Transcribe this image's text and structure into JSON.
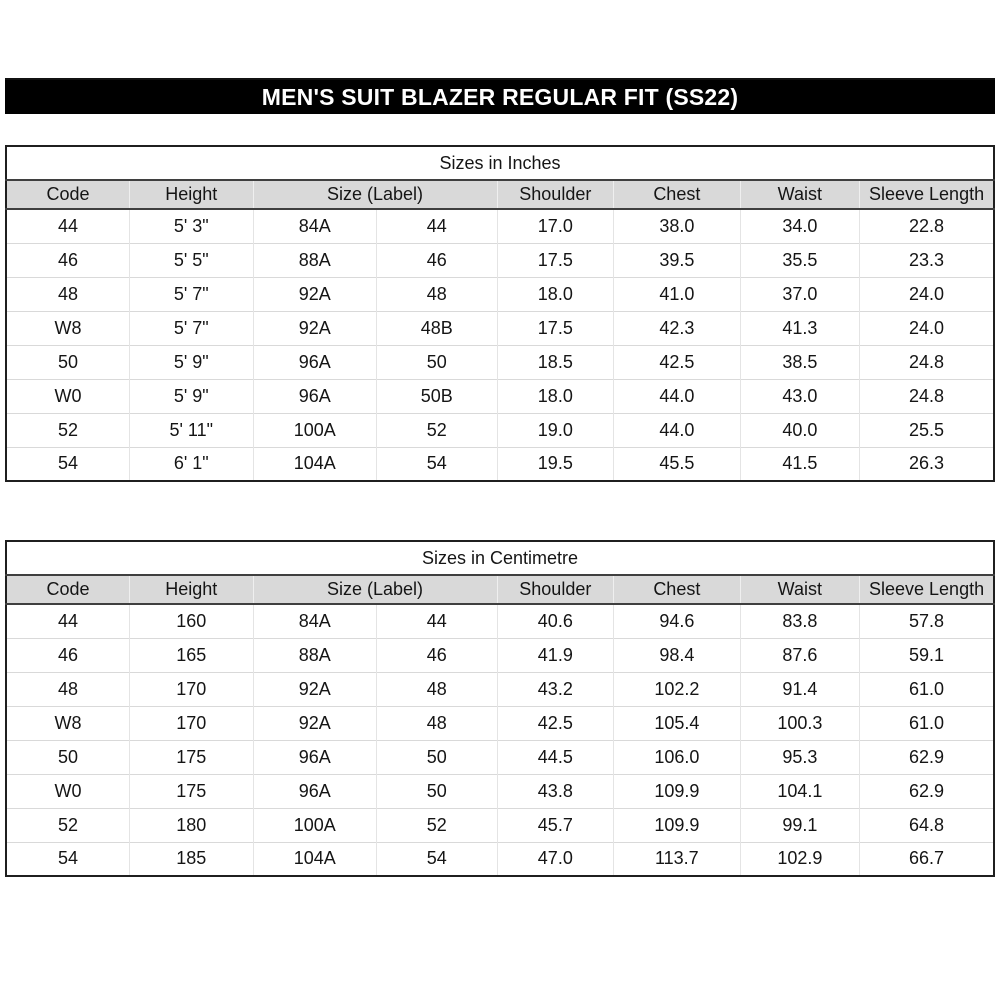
{
  "header": {
    "title": "MEN'S SUIT BLAZER REGULAR FIT (SS22)",
    "bar_color": "#000000",
    "text_color": "#ffffff"
  },
  "columns": {
    "labels": [
      "Code",
      "Height",
      "Size (Label)",
      "Shoulder",
      "Chest",
      "Waist",
      "Sleeve Length"
    ],
    "spans": [
      1,
      1,
      2,
      1,
      1,
      1,
      1
    ]
  },
  "tables": [
    {
      "caption": "Sizes in Inches",
      "rows": [
        [
          "44",
          "5' 3\"",
          "84A",
          "44",
          "17.0",
          "38.0",
          "34.0",
          "22.8"
        ],
        [
          "46",
          "5' 5\"",
          "88A",
          "46",
          "17.5",
          "39.5",
          "35.5",
          "23.3"
        ],
        [
          "48",
          "5' 7\"",
          "92A",
          "48",
          "18.0",
          "41.0",
          "37.0",
          "24.0"
        ],
        [
          "W8",
          "5' 7\"",
          "92A",
          "48B",
          "17.5",
          "42.3",
          "41.3",
          "24.0"
        ],
        [
          "50",
          "5' 9\"",
          "96A",
          "50",
          "18.5",
          "42.5",
          "38.5",
          "24.8"
        ],
        [
          "W0",
          "5' 9\"",
          "96A",
          "50B",
          "18.0",
          "44.0",
          "43.0",
          "24.8"
        ],
        [
          "52",
          "5' 11\"",
          "100A",
          "52",
          "19.0",
          "44.0",
          "40.0",
          "25.5"
        ],
        [
          "54",
          "6' 1\"",
          "104A",
          "54",
          "19.5",
          "45.5",
          "41.5",
          "26.3"
        ]
      ]
    },
    {
      "caption": "Sizes in Centimetre",
      "rows": [
        [
          "44",
          "160",
          "84A",
          "44",
          "40.6",
          "94.6",
          "83.8",
          "57.8"
        ],
        [
          "46",
          "165",
          "88A",
          "46",
          "41.9",
          "98.4",
          "87.6",
          "59.1"
        ],
        [
          "48",
          "170",
          "92A",
          "48",
          "43.2",
          "102.2",
          "91.4",
          "61.0"
        ],
        [
          "W8",
          "170",
          "92A",
          "48",
          "42.5",
          "105.4",
          "100.3",
          "61.0"
        ],
        [
          "50",
          "175",
          "96A",
          "50",
          "44.5",
          "106.0",
          "95.3",
          "62.9"
        ],
        [
          "W0",
          "175",
          "96A",
          "50",
          "43.8",
          "109.9",
          "104.1",
          "62.9"
        ],
        [
          "52",
          "180",
          "100A",
          "52",
          "45.7",
          "109.9",
          "99.1",
          "64.8"
        ],
        [
          "54",
          "185",
          "104A",
          "54",
          "47.0",
          "113.7",
          "102.9",
          "66.7"
        ]
      ]
    }
  ],
  "colors": {
    "header_row_bg": "#d9d9d9",
    "border_dark": "#1f1f1f",
    "grid_line": "#d9d9d9",
    "text": "#151515"
  }
}
